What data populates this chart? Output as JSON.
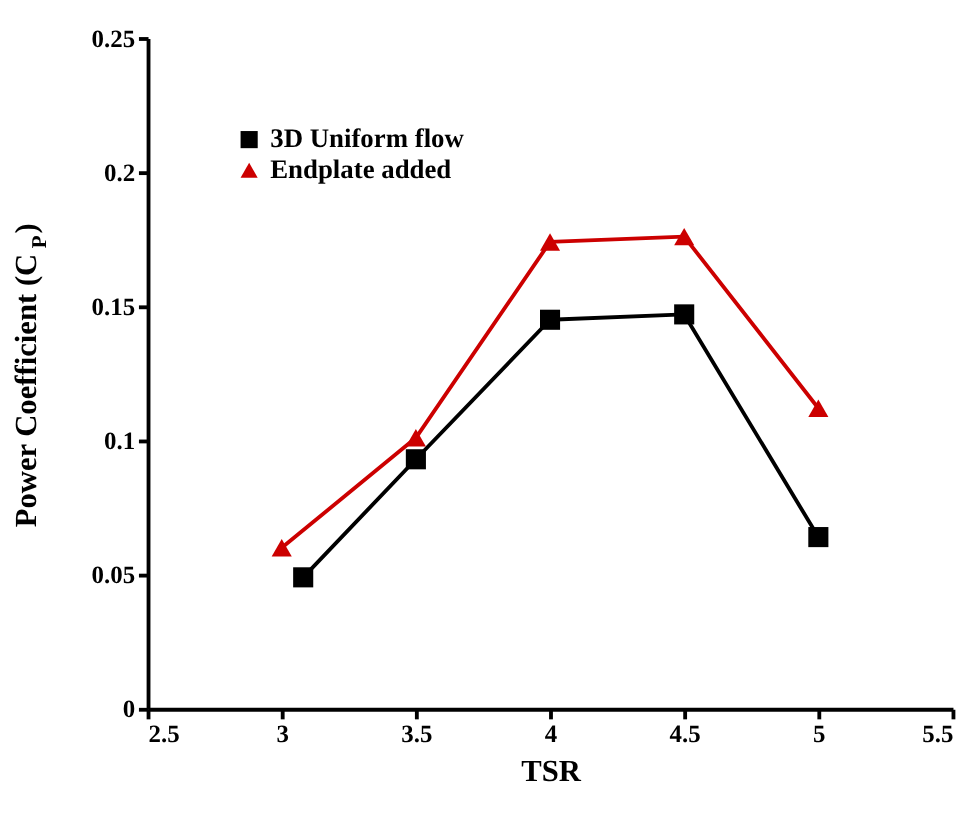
{
  "chart_data": {
    "type": "line",
    "xlabel": "TSR",
    "ylabel": "Power Coefficient (C$_{P}$)",
    "xlim": [
      2.5,
      5.5
    ],
    "xticks": [
      2.5,
      3,
      3.5,
      4,
      4.5,
      5,
      5.5
    ],
    "ylim": [
      0,
      0.25
    ],
    "yticks": [
      0,
      0.05,
      0.1,
      0.15,
      0.2,
      0.25
    ],
    "grid": false,
    "legend": "top left",
    "series": [
      {
        "name": "3D Uniform flow",
        "color": "#000000",
        "marker": "square",
        "x": [
          3.08,
          3.5,
          4,
          4.5,
          5
        ],
        "values": [
          0.049,
          0.093,
          0.145,
          0.147,
          0.064
        ]
      },
      {
        "name": "Endplate added",
        "color": "#cc0000",
        "marker": "triangle",
        "x": [
          3.0,
          3.5,
          4,
          4.5,
          5
        ],
        "values": [
          0.06,
          0.101,
          0.174,
          0.176,
          0.112
        ]
      }
    ]
  }
}
